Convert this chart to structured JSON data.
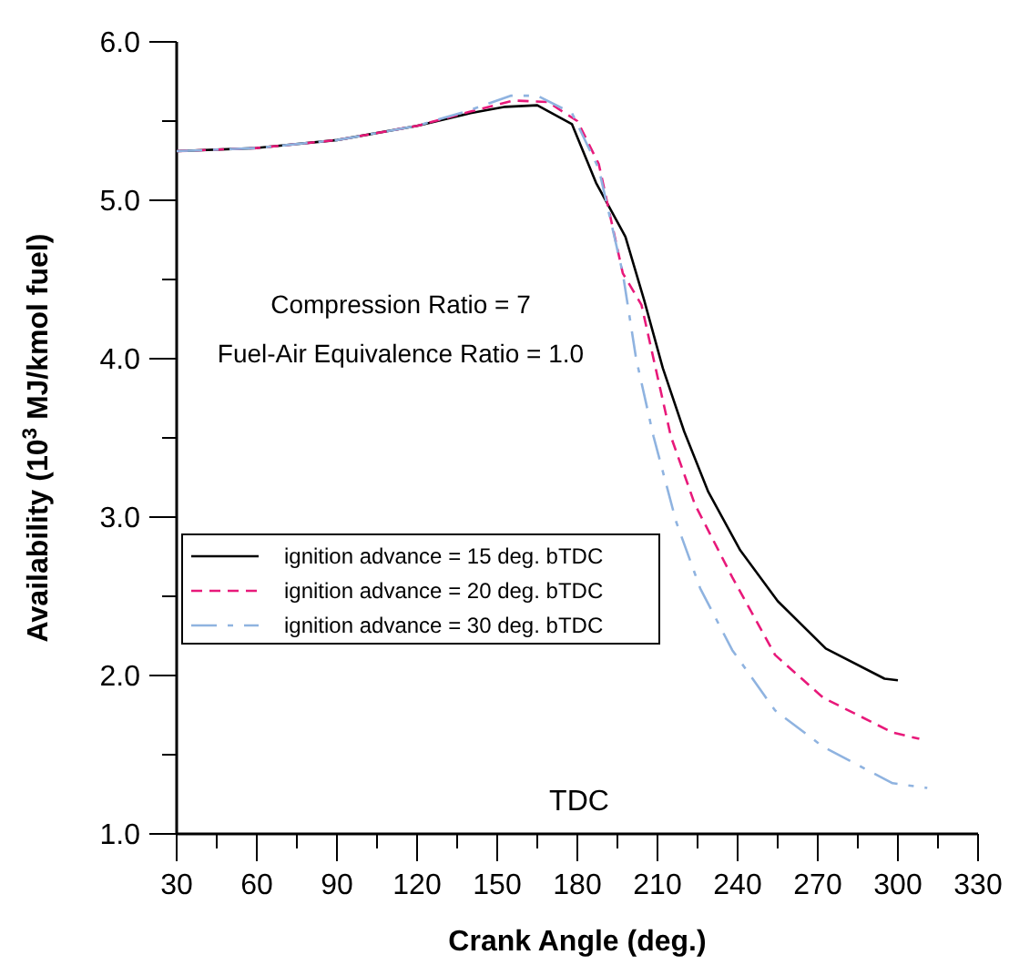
{
  "chart_data": {
    "type": "line",
    "xlabel": "Crank Angle (deg.)",
    "ylabel": "Availability (10$^{3}$ MJ/kmol fuel)",
    "xlim": [
      30,
      330
    ],
    "ylim": [
      1.0,
      6.0
    ],
    "xticks": [
      30,
      {
        "value": 45,
        "label": null
      },
      60,
      {
        "value": 75,
        "label": null
      },
      90,
      {
        "value": 105,
        "label": null
      },
      120,
      {
        "value": 135,
        "label": null
      },
      150,
      {
        "value": 165,
        "label": null
      },
      180,
      {
        "value": 195,
        "label": null
      },
      210,
      {
        "value": 225,
        "label": null
      },
      240,
      {
        "value": 255,
        "label": null
      },
      270,
      {
        "value": 285,
        "label": null
      },
      300,
      {
        "value": 315,
        "label": null
      },
      330
    ],
    "yticks": [
      {
        "value": 1.0,
        "label": "1.0"
      },
      {
        "value": 1.5,
        "label": null
      },
      {
        "value": 2.0,
        "label": "2.0"
      },
      {
        "value": 2.5,
        "label": null
      },
      {
        "value": 3.0,
        "label": "3.0"
      },
      {
        "value": 3.5,
        "label": null
      },
      {
        "value": 4.0,
        "label": "4.0"
      },
      {
        "value": 4.5,
        "label": null
      },
      {
        "value": 5.0,
        "label": "5.0"
      },
      {
        "value": 5.5,
        "label": null
      },
      {
        "value": 6.0,
        "label": "6.0"
      }
    ],
    "grid": false,
    "legend": "bottom left",
    "marker": "none",
    "annotations": [
      "Compression Ratio = 7",
      "Fuel-Air Equivalence Ratio = 1.0",
      "TDC"
    ],
    "series": [
      {
        "name": "ignition advance = 15 deg. bTDC",
        "color": "#000000",
        "line_style": "solid",
        "x": [
          30,
          60,
          90,
          120,
          140,
          153,
          165,
          178,
          187,
          198,
          205,
          212,
          220,
          229,
          241,
          255,
          273,
          295,
          300
        ],
        "values": [
          5.31,
          5.33,
          5.38,
          5.47,
          5.55,
          5.59,
          5.6,
          5.48,
          5.11,
          4.77,
          4.37,
          3.94,
          3.54,
          3.16,
          2.79,
          2.47,
          2.17,
          1.98,
          1.97
        ]
      },
      {
        "name": "ignition advance = 20 deg. bTDC",
        "color": "#e8197a",
        "line_style": "dashed",
        "x": [
          30,
          60,
          90,
          120,
          140,
          156,
          169,
          180,
          188,
          197,
          204,
          215,
          224,
          238,
          254,
          272,
          298,
          308
        ],
        "values": [
          5.31,
          5.33,
          5.38,
          5.47,
          5.56,
          5.63,
          5.62,
          5.5,
          5.23,
          4.54,
          4.34,
          3.51,
          3.08,
          2.62,
          2.13,
          1.86,
          1.64,
          1.6
        ]
      },
      {
        "name": "ignition advance = 30 deg. bTDC",
        "color": "#8fb3e0",
        "line_style": "dashed",
        "x": [
          30,
          60,
          90,
          120,
          140,
          155,
          165,
          178,
          188,
          197,
          202,
          208.5,
          217,
          226,
          238,
          254,
          272,
          298,
          311
        ],
        "values": [
          5.31,
          5.33,
          5.38,
          5.47,
          5.57,
          5.66,
          5.66,
          5.55,
          5.2,
          4.54,
          4.0,
          3.51,
          2.97,
          2.55,
          2.16,
          1.78,
          1.55,
          1.32,
          1.29
        ]
      }
    ]
  }
}
